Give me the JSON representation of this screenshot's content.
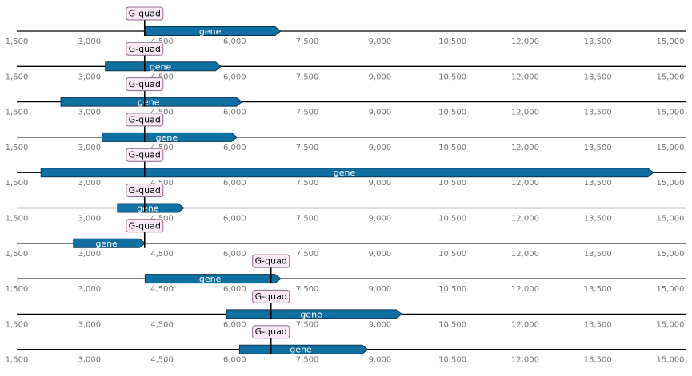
{
  "colors": {
    "gene_fill": "#0e6fa0",
    "gene_stroke": "#0a3550",
    "axis": "#000000",
    "tick_text": "#777777",
    "gquad_fill": "#fbeaf6",
    "gquad_stroke": "#8c6b88",
    "gquad_text": "#000000"
  },
  "axis": {
    "min": 1500,
    "max": 15500,
    "ticks": [
      1500,
      3000,
      4500,
      6000,
      7500,
      9000,
      10500,
      12000,
      13500,
      15000
    ],
    "tick_labels": [
      "1,500",
      "3,000",
      "4,500",
      "6,000",
      "7,500",
      "9,000",
      "10,500",
      "12,000",
      "13,500",
      "15,000"
    ]
  },
  "tracks": [
    {
      "gene": {
        "label": "gene",
        "start": 4150,
        "end": 6950
      },
      "gquad": {
        "label": "G-quad",
        "position": 4140
      }
    },
    {
      "gene": {
        "label": "gene",
        "start": 3330,
        "end": 5720
      },
      "gquad": {
        "label": "G-quad",
        "position": 4140
      }
    },
    {
      "gene": {
        "label": "gene",
        "start": 2410,
        "end": 6150
      },
      "gquad": {
        "label": "G-quad",
        "position": 4140
      }
    },
    {
      "gene": {
        "label": "gene",
        "start": 3260,
        "end": 6050
      },
      "gquad": {
        "label": "G-quad",
        "position": 4140
      }
    },
    {
      "gene": {
        "label": "gene",
        "start": 2000,
        "end": 14650
      },
      "gquad": {
        "label": "G-quad",
        "position": 4140
      }
    },
    {
      "gene": {
        "label": "gene",
        "start": 3580,
        "end": 4950
      },
      "gquad": {
        "label": "G-quad",
        "position": 4140
      }
    },
    {
      "gene": {
        "label": "gene",
        "start": 2670,
        "end": 4150
      },
      "gquad": {
        "label": "G-quad",
        "position": 4140
      }
    },
    {
      "gene": {
        "label": "gene",
        "start": 4150,
        "end": 6950
      },
      "gquad": {
        "label": "G-quad",
        "position": 6750
      }
    },
    {
      "gene": {
        "label": "gene",
        "start": 5830,
        "end": 9450
      },
      "gquad": {
        "label": "G-quad",
        "position": 6750
      }
    },
    {
      "gene": {
        "label": "gene",
        "start": 6100,
        "end": 8750
      },
      "gquad": {
        "label": "G-quad",
        "position": 6750
      }
    }
  ]
}
